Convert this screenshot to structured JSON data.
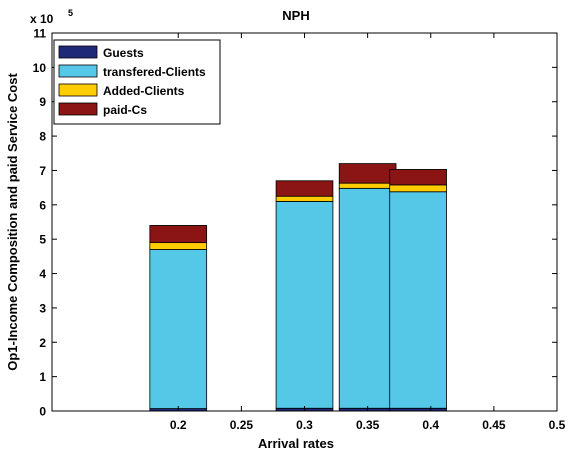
{
  "chart_data": {
    "type": "bar",
    "stacked": true,
    "title": "NPH",
    "xlabel": "Arrival rates",
    "ylabel": "Op1-Income Composition and paid Service Cost",
    "y_exponent_label": "x 10",
    "y_exponent": "5",
    "xlim": [
      0.1,
      0.5
    ],
    "ylim": [
      0,
      11
    ],
    "x_ticks": [
      0.2,
      0.25,
      0.3,
      0.35,
      0.4,
      0.45,
      0.5
    ],
    "x_tick_labels": [
      "0.2",
      "0.25",
      "0.3",
      "0.35",
      "0.4",
      "0.45",
      "0.5"
    ],
    "y_ticks": [
      0,
      1,
      2,
      3,
      4,
      5,
      6,
      7,
      8,
      9,
      10,
      11
    ],
    "y_tick_labels": [
      "0",
      "1",
      "2",
      "3",
      "4",
      "5",
      "6",
      "7",
      "8",
      "9",
      "10",
      "11"
    ],
    "bar_width": 0.045,
    "grid": false,
    "legend_position": "top-left",
    "x": [
      0.2,
      0.3,
      0.35,
      0.39
    ],
    "series": [
      {
        "name": "Guests",
        "color": "#1e2a78",
        "values": [
          0.07,
          0.08,
          0.08,
          0.08
        ]
      },
      {
        "name": "transfered-Clients",
        "color": "#55c8e8",
        "values": [
          4.63,
          6.02,
          6.4,
          6.3
        ]
      },
      {
        "name": "Added-Clients",
        "color": "#ffcc00",
        "values": [
          0.2,
          0.15,
          0.15,
          0.2
        ]
      },
      {
        "name": "paid-Cs",
        "color": "#8b1414",
        "values": [
          0.5,
          0.45,
          0.57,
          0.45
        ]
      }
    ]
  }
}
